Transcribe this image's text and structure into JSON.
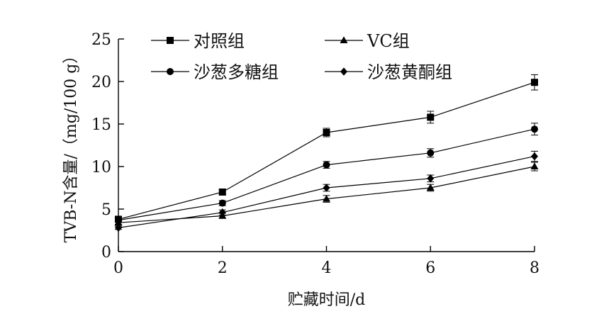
{
  "chart_data": {
    "type": "line",
    "title": "",
    "xlabel": "贮藏时间/d",
    "ylabel": "TVB-N含量/（mg/100 g）",
    "x": [
      0,
      2,
      4,
      6,
      8
    ],
    "xlim": [
      0,
      8
    ],
    "ylim": [
      0,
      25
    ],
    "xticks": [
      "0",
      "2",
      "4",
      "6",
      "8"
    ],
    "yticks": [
      "0",
      "5",
      "10",
      "15",
      "20",
      "25"
    ],
    "grid": false,
    "legend_position": "top-left",
    "series": [
      {
        "name": "对照组",
        "marker": "square",
        "values": [
          3.8,
          7.0,
          14.0,
          15.8,
          19.9
        ],
        "errors": [
          0.3,
          0.3,
          0.5,
          0.7,
          0.9
        ]
      },
      {
        "name": "VC组",
        "marker": "triangle",
        "values": [
          3.4,
          4.2,
          6.2,
          7.5,
          10.0
        ],
        "errors": [
          0.2,
          0.3,
          0.4,
          0.4,
          0.5
        ]
      },
      {
        "name": "沙葱多糖组",
        "marker": "circle",
        "values": [
          3.7,
          5.7,
          10.2,
          11.6,
          14.4
        ],
        "errors": [
          0.2,
          0.3,
          0.4,
          0.5,
          0.7
        ]
      },
      {
        "name": "沙葱黄酮组",
        "marker": "diamond",
        "values": [
          2.8,
          4.6,
          7.5,
          8.6,
          11.2
        ],
        "errors": [
          0.2,
          0.3,
          0.4,
          0.4,
          0.6
        ]
      }
    ]
  }
}
